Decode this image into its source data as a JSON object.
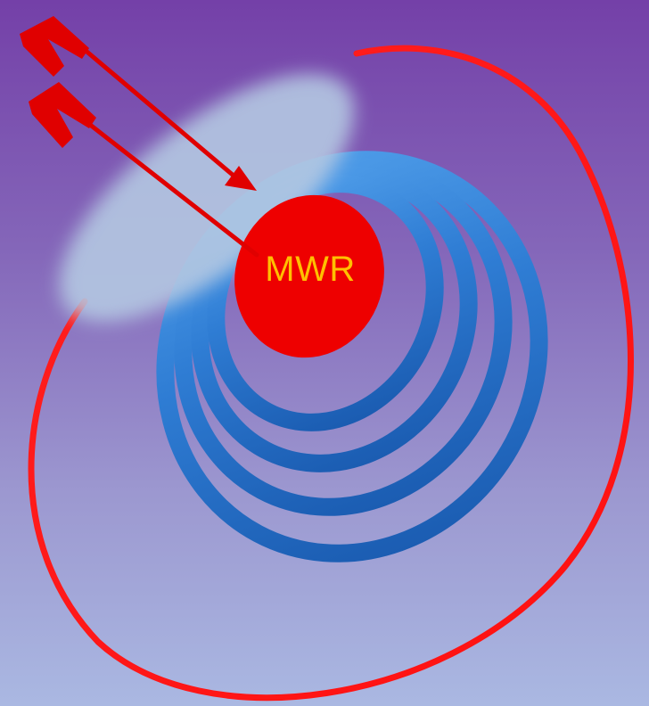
{
  "target": {
    "label": "MWR",
    "label_color": "#ffc000",
    "bullseye_color": "#ee0000",
    "outer_ring_color": "#ff1a1a",
    "ring_color": "#1f66c0",
    "ring_count": 4,
    "arrow_color": "#e00000",
    "arrow_count": 2,
    "haze_color": "#b4c8e2"
  },
  "background": {
    "top_color": "#7440a8",
    "bottom_color": "#aab8e2"
  }
}
